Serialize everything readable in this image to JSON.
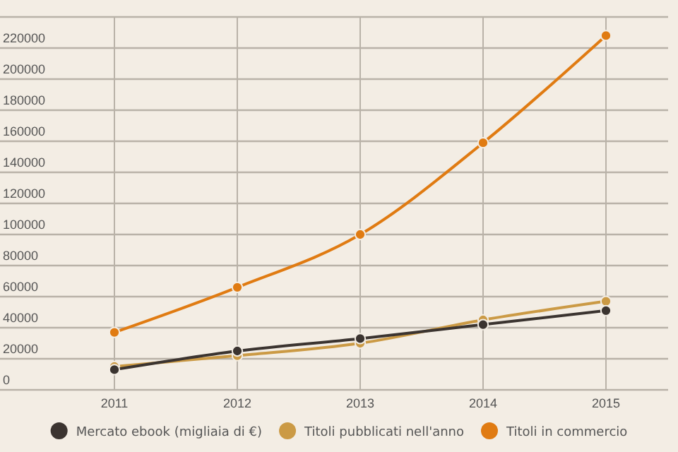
{
  "chart_data": {
    "type": "line",
    "categories": [
      "2011",
      "2012",
      "2013",
      "2014",
      "2015"
    ],
    "series": [
      {
        "name": "Mercato ebook (migliaia di €)",
        "color": "#3b3430",
        "values": [
          13000,
          25000,
          33000,
          42000,
          51000
        ]
      },
      {
        "name": "Titoli pubblicati nell'anno",
        "color": "#cb9a45",
        "values": [
          15000,
          22000,
          30000,
          45000,
          57000
        ]
      },
      {
        "name": "Titoli in commercio",
        "color": "#e07b12",
        "values": [
          37000,
          66000,
          100000,
          159000,
          228000
        ]
      }
    ],
    "ylim": [
      0,
      240000
    ],
    "yticks": [
      0,
      20000,
      40000,
      60000,
      80000,
      100000,
      120000,
      140000,
      160000,
      180000,
      200000,
      220000,
      {
        "value": 240000,
        "label": null
      }
    ],
    "grid": true,
    "legend": "bottom",
    "marker": "circle",
    "line_style": "solid"
  }
}
